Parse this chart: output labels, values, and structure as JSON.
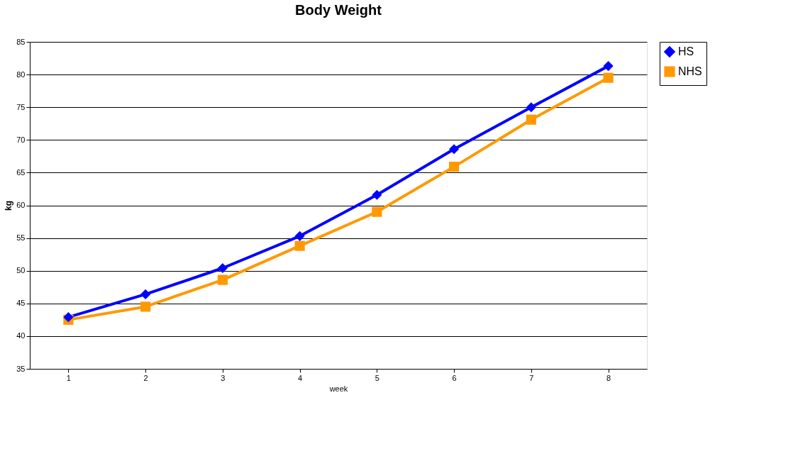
{
  "chart_data": {
    "type": "line",
    "title": "Body Weight",
    "xlabel": "week",
    "ylabel": "kg",
    "categories": [
      "1",
      "2",
      "3",
      "4",
      "5",
      "6",
      "7",
      "8"
    ],
    "series": [
      {
        "name": "HS",
        "color": "#0000ff",
        "marker": "diamond",
        "values": [
          42.9,
          46.4,
          50.4,
          55.3,
          61.6,
          68.6,
          75.0,
          81.3
        ]
      },
      {
        "name": "NHS",
        "color": "#ff9900",
        "marker": "square",
        "values": [
          42.5,
          44.5,
          48.6,
          53.8,
          59.0,
          65.9,
          73.1,
          79.5
        ]
      }
    ],
    "ylim": [
      35,
      85
    ],
    "yticks": [
      35,
      40,
      45,
      50,
      55,
      60,
      65,
      70,
      75,
      80,
      85
    ],
    "grid": "y",
    "legend": "right",
    "line_style": "solid"
  }
}
